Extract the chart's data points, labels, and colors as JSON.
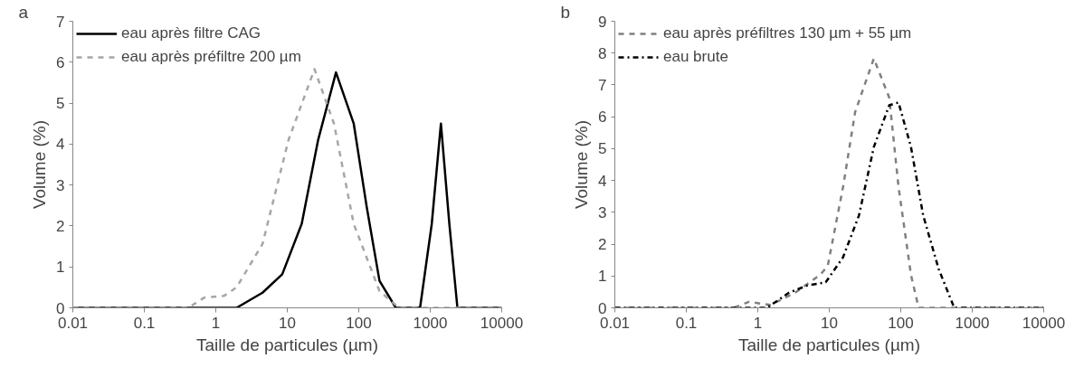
{
  "chart_data": [
    {
      "type": "line",
      "annotations": [
        "a"
      ],
      "xlabel": "Taille de particules (µm)",
      "ylabel": "Volume (%)",
      "log": "x",
      "xlim": [
        0.01,
        10000
      ],
      "xticks": [
        0.01,
        0.1,
        1,
        10,
        100,
        1000,
        10000
      ],
      "ylim": [
        0,
        7
      ],
      "yticks": [
        0,
        1,
        2,
        3,
        4,
        5,
        6,
        7
      ],
      "grid": false,
      "legend": "top left",
      "marker": "none",
      "series": [
        {
          "name": "eau après filtre CAG",
          "color": "#000000",
          "line_style": "solid",
          "x": [
            0.01,
            1.95,
            4.5,
            8.5,
            15.9,
            27,
            48,
            85,
            129,
            195,
            330,
            720,
            1050,
            1410,
            1850,
            2400,
            10000
          ],
          "values": [
            0,
            0,
            0.37,
            0.82,
            2.05,
            4.1,
            5.75,
            4.5,
            2.47,
            0.66,
            0,
            0,
            2.05,
            4.5,
            2.05,
            0,
            0
          ]
        },
        {
          "name": "eau après préfiltre 200 µm",
          "color": "#a6a6a6",
          "line_style": "dashed",
          "x": [
            0.01,
            0.41,
            0.69,
            1.3,
            1.95,
            4.5,
            10.4,
            24,
            45,
            85,
            195,
            365,
            10000
          ],
          "values": [
            0,
            0,
            0.25,
            0.29,
            0.5,
            1.56,
            4.1,
            5.83,
            4.5,
            2.05,
            0.41,
            0,
            0
          ]
        }
      ]
    },
    {
      "type": "line",
      "annotations": [
        "b"
      ],
      "xlabel": "Taille de particules (µm)",
      "ylabel": "Volume (%)",
      "log": "x",
      "xlim": [
        0.01,
        10000
      ],
      "xticks": [
        0.01,
        0.1,
        1,
        10,
        100,
        1000,
        10000
      ],
      "ylim": [
        0,
        9
      ],
      "yticks": [
        0,
        1,
        2,
        3,
        4,
        5,
        6,
        7,
        8,
        9
      ],
      "grid": false,
      "legend": "top left",
      "marker": "none",
      "series": [
        {
          "name": "eau après préfiltres 130 µm + 55 µm",
          "color": "#808080",
          "line_style": "dashed",
          "x": [
            0.01,
            0.46,
            0.75,
            1.5,
            3.3,
            7.4,
            9.5,
            15.6,
            23,
            42,
            69,
            93,
            139,
            178,
            10000
          ],
          "values": [
            0,
            0,
            0.19,
            0.09,
            0.47,
            1.03,
            1.31,
            3.8,
            6.15,
            7.83,
            6.6,
            3.8,
            1.03,
            0,
            0
          ]
        },
        {
          "name": "eau brute",
          "color": "#000000",
          "line_style": "dashdot",
          "x": [
            0.01,
            1.35,
            2.7,
            4.9,
            8.9,
            15.6,
            26,
            42,
            69,
            93,
            139,
            206,
            340,
            560,
            10000
          ],
          "values": [
            0,
            0,
            0.47,
            0.7,
            0.8,
            1.59,
            2.9,
            5.05,
            6.36,
            6.45,
            5.05,
            2.9,
            1.21,
            0,
            0
          ]
        }
      ]
    }
  ]
}
